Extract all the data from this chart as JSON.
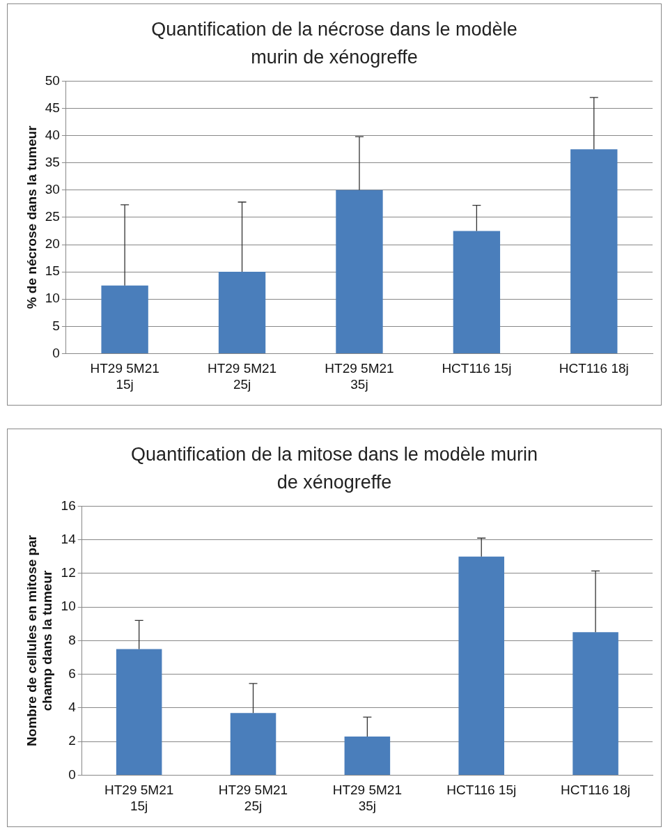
{
  "chart_data": [
    {
      "type": "bar",
      "title": "Quantification de la nécrose dans le modèle murin de xénogreffe",
      "ylabel": "% de nécrose dans la tumeur",
      "categories": [
        "HT29 5M21 15j",
        "HT29 5M21 25j",
        "HT29 5M21 35j",
        "HCT116 15j",
        "HCT116 18j"
      ],
      "values": [
        12.5,
        15,
        30,
        22.5,
        37.5
      ],
      "color": "#4a7ebb",
      "errors": [
        [
          12.5,
          27.3
        ],
        [
          15,
          27.8
        ],
        [
          30,
          39.8
        ],
        [
          22.5,
          27.2
        ],
        [
          37.5,
          47
        ]
      ],
      "ylim": [
        0,
        50
      ],
      "yticks": [
        0,
        5,
        10,
        15,
        20,
        25,
        30,
        35,
        40,
        45,
        50
      ],
      "grid": "y",
      "legend": false
    },
    {
      "type": "bar",
      "title": "Quantification de la mitose dans le modèle murin de xénogreffe",
      "ylabel": "Nombre de cellules en mitose par champ dans la tumeur",
      "categories": [
        "HT29 5M21 15j",
        "HT29 5M21 25j",
        "HT29 5M21 35j",
        "HCT116 15j",
        "HCT116 18j"
      ],
      "values": [
        7.5,
        3.7,
        2.3,
        13,
        8.5
      ],
      "color": "#4a7ebb",
      "errors": [
        [
          7.5,
          9.2
        ],
        [
          3.7,
          5.45
        ],
        [
          2.3,
          3.45
        ],
        [
          13,
          14.1
        ],
        [
          8.5,
          12.15
        ]
      ],
      "ylim": [
        0,
        16
      ],
      "yticks": [
        0,
        2,
        4,
        6,
        8,
        10,
        12,
        14,
        16
      ],
      "grid": "y",
      "legend": false
    }
  ]
}
